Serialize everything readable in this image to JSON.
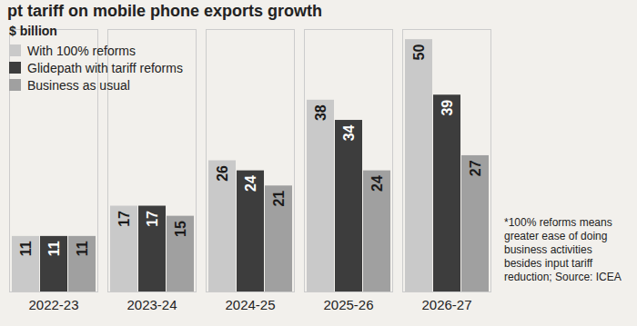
{
  "chart_data": {
    "type": "bar",
    "title": "pt tariff on mobile phone exports growth",
    "y_label": "$ billion",
    "categories": [
      "2022-23",
      "2023-24",
      "2024-25",
      "2025-26",
      "2026-27"
    ],
    "series": [
      {
        "name": "With 100% reforms",
        "color": "#c9c9c9",
        "values": [
          11,
          17,
          26,
          38,
          50
        ]
      },
      {
        "name": "Glidepath with tariff reforms",
        "color": "#3d3d3d",
        "values": [
          11,
          17,
          24,
          34,
          39
        ]
      },
      {
        "name": "Business as usual",
        "color": "#a0a0a0",
        "values": [
          11,
          15,
          21,
          24,
          27
        ]
      }
    ],
    "ylim": [
      0,
      52
    ],
    "legend": "top-left",
    "data_labels": true,
    "tick_labels": "x",
    "note": "*100% reforms means greater ease of doing business activities besides input tariff reduction; Source: ICEA"
  }
}
